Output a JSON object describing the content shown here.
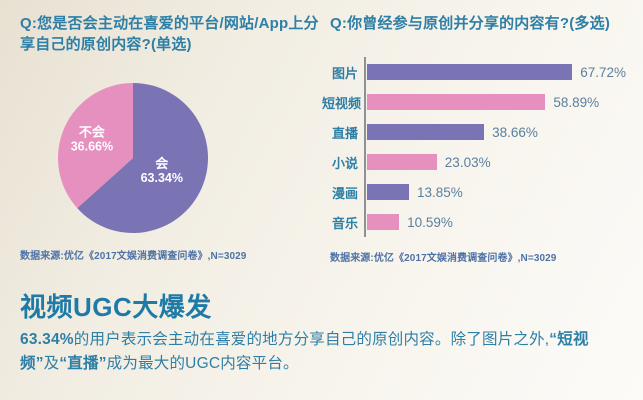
{
  "left_panel": {
    "question": "Q:您是否会主动在喜爱的平台/网站/App上分享自己的原创内容?(单选)",
    "source": "数据来源:优亿《2017文娱消费调查问卷》,N=3029"
  },
  "right_panel": {
    "question": "Q:你曾经参与原创并分享的内容有?(多选)",
    "source": "数据来源:优亿《2017文娱消费调查问卷》,N=3029"
  },
  "chart_data": [
    {
      "type": "pie",
      "title": "Q:您是否会主动在喜爱的平台/网站/App上分享自己的原创内容?(单选)",
      "labels": [
        "会",
        "不会"
      ],
      "values": [
        63.34,
        36.66
      ],
      "colors": [
        "#7b74b4",
        "#e690c0"
      ],
      "start_angle": "top",
      "direction": "clockwise",
      "label_style": "name and percent inside slice, white bold",
      "value_suffix": "%"
    },
    {
      "type": "bar",
      "orientation": "horizontal",
      "title": "Q:你曾经参与原创并分享的内容有?(多选)",
      "categories": [
        "图片",
        "短视频",
        "直播",
        "小说",
        "漫画",
        "音乐"
      ],
      "values": [
        67.72,
        58.89,
        38.66,
        23.03,
        13.85,
        10.59
      ],
      "colors": [
        "#7b74b4",
        "#e690c0",
        "#7b74b4",
        "#e690c0",
        "#7b74b4",
        "#e690c0"
      ],
      "xlim": [
        0,
        70
      ],
      "value_suffix": "%",
      "value_labels": "outside end of bar",
      "grid": false,
      "axis_color": "#90909b"
    }
  ],
  "footer": {
    "heading": "视频UGC大爆发",
    "body_segments": [
      {
        "text": "63.34%",
        "bold": true
      },
      {
        "text": "的用户表示会主动在喜爱的地方分享自己的原创内容。除了图片之外,",
        "bold": false
      },
      {
        "text": "“短视频”",
        "bold": true
      },
      {
        "text": "及",
        "bold": false
      },
      {
        "text": "“直播”",
        "bold": true
      },
      {
        "text": "成为最大的UGC内容平台。",
        "bold": false
      }
    ]
  },
  "theme": {
    "title_color": "#2e7fa6",
    "heading_color": "#1e7aa6",
    "source_color": "#4f72a6",
    "value_label_color": "#5a7f9e",
    "purple": "#7b74b4",
    "pink": "#e690c0",
    "background": "#f1ede2"
  }
}
